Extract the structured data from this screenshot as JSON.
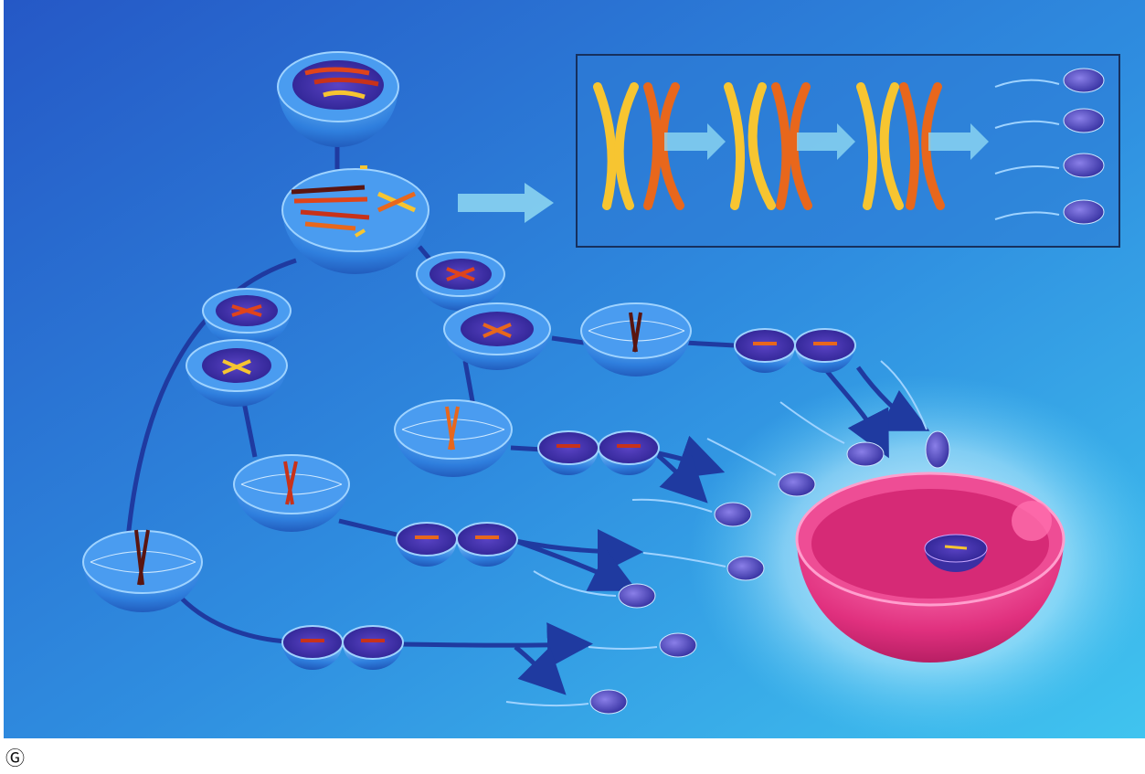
{
  "colors": {
    "background_dark": "#2a5fc9",
    "background_light": "#3cc0ee",
    "cell_membrane": "#3a8ee8",
    "nucleus": "#3b2fa3",
    "paternal_chromosome": "#e8671c",
    "maternal_chromosome": "#f7c531",
    "dark_chromosome": "#5a1510",
    "egg_cell": "#e0307e",
    "pathway_line": "#1f3aa0",
    "arrow_light": "#8fd8f2"
  },
  "icons": {
    "corner_mark": "circled-latin-capital-g"
  },
  "corner_mark_text": "Ⓖ"
}
